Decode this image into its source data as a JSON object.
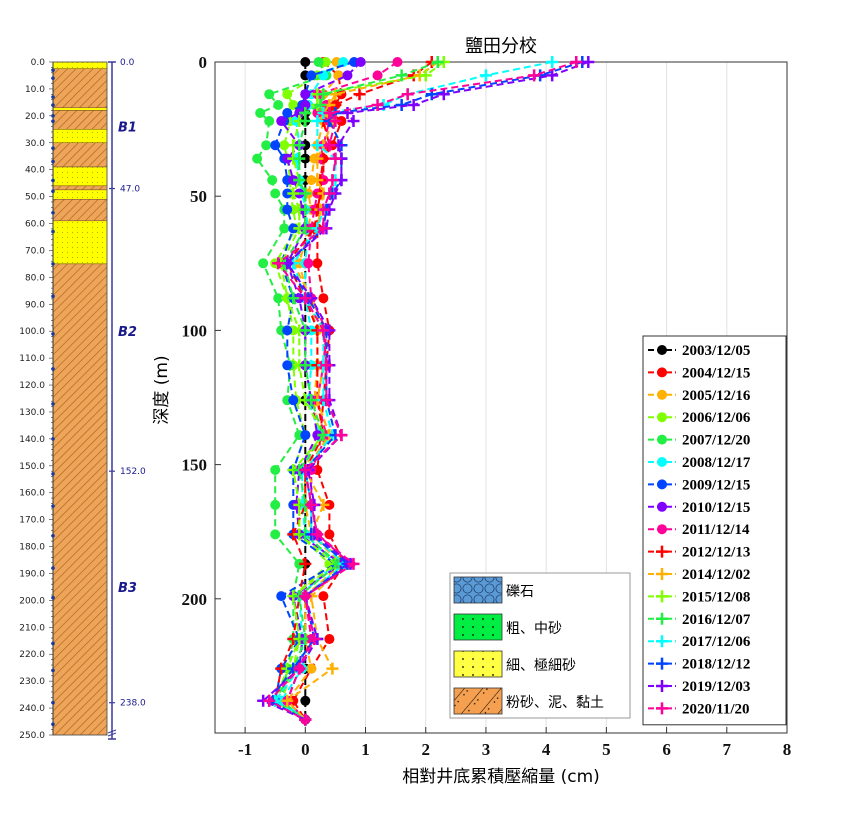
{
  "chart_data": {
    "type": "line",
    "title": "鹽田分校",
    "xlabel": "相對井底累積壓縮量 (cm)",
    "ylabel": "深度 (m)",
    "xlim": [
      -1.5,
      8
    ],
    "ylim": [
      0,
      250
    ],
    "y_inverted": true,
    "grid": "vertical",
    "legend_placement": "bottom-right",
    "xticks": [
      "-1",
      "0",
      "1",
      "2",
      "3",
      "4",
      "5",
      "6",
      "7",
      "8"
    ],
    "xtick_values": [
      -1,
      0,
      1,
      2,
      3,
      4,
      5,
      6,
      7,
      8
    ],
    "yticks": [
      "0",
      "50",
      "100",
      "150",
      "200"
    ],
    "ytick_values": [
      0,
      50,
      100,
      150,
      200
    ],
    "depths": [
      0,
      5,
      12,
      16,
      19,
      22,
      31,
      36,
      44,
      49,
      55,
      62,
      75,
      88,
      100,
      113,
      126,
      139,
      152,
      165,
      176,
      187,
      199,
      215,
      226,
      238,
      245
    ],
    "series": [
      {
        "name": "2003/12/05",
        "color": "#000000",
        "marker": "circle",
        "values": [
          0,
          0,
          0,
          0,
          0,
          0,
          0,
          0,
          0,
          0,
          0,
          0,
          0,
          0,
          0,
          0,
          0,
          0,
          0,
          0,
          0,
          0,
          0,
          0,
          0,
          0,
          0
        ]
      },
      {
        "name": "2004/12/15",
        "color": "#ff0000",
        "marker": "circle",
        "values": [
          0.3,
          0.55,
          0.6,
          0.5,
          0.45,
          0.6,
          0.45,
          0.3,
          0.3,
          0.25,
          0.2,
          0.2,
          0.2,
          0.3,
          0.4,
          0.35,
          0.3,
          0.25,
          0.2,
          0.4,
          0.4,
          0.65,
          0.3,
          0.4,
          0.1,
          -0.2,
          0
        ]
      },
      {
        "name": "2005/12/16",
        "color": "#ffb000",
        "marker": "circle",
        "values": [
          0.52,
          0.55,
          0.3,
          0.35,
          0.3,
          0.3,
          0.2,
          0.15,
          0.1,
          0.05,
          0.1,
          0.05,
          -0.1,
          0.05,
          0.2,
          0.2,
          0.15,
          0.2,
          0,
          0,
          0.1,
          0.6,
          0,
          0,
          0.1,
          -0.3,
          0
        ]
      },
      {
        "name": "2006/12/06",
        "color": "#80ff00",
        "marker": "circle",
        "values": [
          0.34,
          0.2,
          -0.3,
          -0.2,
          -0.3,
          -0.25,
          -0.35,
          -0.3,
          -0.25,
          -0.25,
          -0.2,
          -0.15,
          -0.5,
          -0.3,
          -0.2,
          -0.2,
          -0.15,
          0,
          -0.2,
          -0.1,
          -0.1,
          0.4,
          -0.2,
          -0.1,
          -0.2,
          -0.4,
          0
        ]
      },
      {
        "name": "2007/12/20",
        "color": "#22ee44",
        "marker": "circle",
        "values": [
          0.22,
          0.35,
          -0.6,
          -0.45,
          -0.75,
          -0.6,
          -0.65,
          -0.8,
          -0.55,
          -0.5,
          -0.35,
          -0.35,
          -0.7,
          -0.45,
          -0.4,
          -0.25,
          -0.3,
          -0.1,
          -0.5,
          -0.5,
          -0.5,
          -0.1,
          -0.2,
          -0.2,
          -0.3,
          -0.4,
          0
        ]
      },
      {
        "name": "2008/12/17",
        "color": "#00ffff",
        "marker": "circle",
        "values": [
          0.63,
          0.3,
          0.1,
          0.05,
          -0.1,
          -0.15,
          -0.1,
          -0.15,
          -0.1,
          -0.05,
          0,
          0.05,
          0,
          0,
          0.1,
          0.1,
          0.05,
          0.25,
          -0.05,
          -0.05,
          0,
          0.5,
          -0.1,
          -0.05,
          -0.05,
          -0.4,
          0
        ]
      },
      {
        "name": "2009/12/15",
        "color": "#0044ff",
        "marker": "circle",
        "values": [
          0.81,
          0.1,
          0,
          -0.05,
          -0.3,
          -0.35,
          -0.5,
          -0.35,
          -0.3,
          -0.3,
          -0.3,
          -0.2,
          -0.4,
          -0.2,
          -0.3,
          -0.3,
          -0.2,
          0,
          -0.2,
          -0.2,
          -0.2,
          0.5,
          -0.4,
          -0.1,
          -0.4,
          -0.5,
          0
        ]
      },
      {
        "name": "2010/12/15",
        "color": "#8000ff",
        "marker": "circle",
        "values": [
          0.92,
          0.7,
          0,
          0,
          -0.1,
          -0.4,
          -0.1,
          -0.3,
          -0.2,
          -0.1,
          -0.05,
          0,
          -0.3,
          -0.1,
          0,
          0,
          0.1,
          0.2,
          -0.1,
          -0.15,
          -0.1,
          0.6,
          -0.2,
          -0.05,
          -0.1,
          -0.3,
          0
        ]
      },
      {
        "name": "2011/12/14",
        "color": "#ff0099",
        "marker": "circle",
        "values": [
          1.53,
          1.2,
          0.2,
          0.35,
          0.2,
          0.4,
          0.3,
          0.25,
          0.3,
          0.2,
          0.15,
          0.1,
          0.05,
          0.1,
          0.35,
          0.3,
          0.2,
          0.35,
          0.1,
          0.1,
          0.2,
          0.75,
          0,
          0.1,
          -0.1,
          -0.3,
          0
        ]
      },
      {
        "name": "2012/12/13",
        "color": "#ff0000",
        "marker": "plus",
        "values": [
          2.1,
          1.8,
          0.9,
          0.5,
          0.3,
          0.3,
          0.4,
          0.3,
          0.25,
          0.25,
          0.2,
          0.15,
          -0.3,
          0,
          0.2,
          0.2,
          0.2,
          0.3,
          0,
          0,
          -0.2,
          0,
          -0.1,
          -0.2,
          -0.4,
          -0.5,
          0
        ]
      },
      {
        "name": "2014/12/02",
        "color": "#ffb000",
        "marker": "plus",
        "values": [
          2.2,
          1.9,
          0.5,
          0.4,
          0.3,
          0.45,
          0.3,
          0.2,
          0.2,
          0.3,
          0.25,
          0.2,
          -0.2,
          0.1,
          0.3,
          0.3,
          0.2,
          0.4,
          0,
          0.3,
          0.1,
          0.7,
          0.1,
          0.2,
          0.45,
          -0.3,
          0
        ]
      },
      {
        "name": "2015/12/08",
        "color": "#80ff00",
        "marker": "plus",
        "values": [
          2.3,
          2.0,
          0.2,
          0.2,
          0,
          -0.1,
          -0.2,
          -0.2,
          -0.1,
          -0.2,
          -0.1,
          -0.1,
          -0.4,
          -0.3,
          -0.1,
          -0.1,
          0,
          0.3,
          -0.2,
          -0.1,
          -0.1,
          0.5,
          -0.2,
          -0.1,
          -0.3,
          -0.5,
          0
        ]
      },
      {
        "name": "2016/12/07",
        "color": "#22ee44",
        "marker": "plus",
        "values": [
          2.2,
          1.6,
          0.3,
          0.25,
          0,
          0,
          -0.1,
          -0.1,
          -0.1,
          0,
          0,
          0,
          -0.35,
          -0.2,
          0,
          0,
          0.1,
          0.3,
          -0.1,
          0,
          0,
          0.55,
          -0.1,
          0,
          -0.2,
          -0.5,
          0
        ]
      },
      {
        "name": "2017/12/06",
        "color": "#00ffff",
        "marker": "plus",
        "values": [
          4.1,
          3.0,
          1.7,
          1.3,
          0.3,
          0.2,
          0.2,
          0.5,
          0.5,
          0.4,
          0.3,
          0.2,
          -0.2,
          0,
          0.3,
          0.3,
          0.3,
          0.45,
          0,
          0.1,
          0.1,
          0.65,
          0,
          0.2,
          -0.1,
          -0.5,
          0
        ]
      },
      {
        "name": "2018/12/12",
        "color": "#0044ff",
        "marker": "plus",
        "values": [
          4.6,
          3.9,
          2.1,
          1.6,
          0.5,
          0.4,
          0.6,
          0.6,
          0.6,
          0.45,
          0.35,
          0.3,
          -0.3,
          0.05,
          0.35,
          0.35,
          0.35,
          0.5,
          0,
          0.1,
          0.1,
          0.7,
          0,
          0.15,
          -0.2,
          -0.6,
          0
        ]
      },
      {
        "name": "2019/12/03",
        "color": "#8000ff",
        "marker": "plus",
        "values": [
          4.7,
          4.1,
          2.3,
          1.8,
          0.7,
          0.8,
          0.55,
          0.6,
          0.6,
          0.5,
          0.4,
          0.35,
          -0.3,
          0.1,
          0.4,
          0.4,
          0.4,
          0.6,
          0.05,
          0.15,
          0.15,
          0.75,
          0,
          0.2,
          -0.1,
          -0.7,
          0
        ]
      },
      {
        "name": "2020/11/20",
        "color": "#ff0099",
        "marker": "plus",
        "values": [
          4.5,
          3.8,
          1.7,
          1.2,
          0.4,
          0.5,
          0.4,
          0.5,
          0.45,
          0.4,
          0.3,
          0.3,
          -0.45,
          0,
          0.3,
          0.35,
          0.35,
          0.6,
          0,
          0.1,
          0.2,
          0.8,
          0,
          0.15,
          -0.1,
          -0.6,
          0
        ]
      }
    ],
    "lithology_legend": [
      {
        "label": "礫石",
        "type": "gravel",
        "color": "#5b9bd5"
      },
      {
        "label": "粗、中砂",
        "type": "coarse-sand",
        "color": "#00ee44"
      },
      {
        "label": "細、極細砂",
        "type": "fine-sand",
        "color": "#ffff44"
      },
      {
        "label": "粉砂、泥、黏土",
        "type": "silt-clay",
        "color": "#f4a050"
      }
    ]
  },
  "column": {
    "depth_ticks": [
      "0.0",
      "10.0",
      "20.0",
      "30.0",
      "40.0",
      "50.0",
      "60.0",
      "70.0",
      "80.0",
      "90.0",
      "100.0",
      "110.0",
      "120.0",
      "130.0",
      "140.0",
      "150.0",
      "160.0",
      "170.0",
      "180.0",
      "190.0",
      "200.0",
      "210.0",
      "220.0",
      "230.0",
      "240.0",
      "250.0"
    ],
    "layers": [
      {
        "top": 0,
        "bottom": 2.5,
        "type": "fine-sand"
      },
      {
        "top": 2.5,
        "bottom": 17,
        "type": "silt-clay"
      },
      {
        "top": 17,
        "bottom": 18,
        "type": "fine-sand"
      },
      {
        "top": 18,
        "bottom": 25,
        "type": "silt-clay"
      },
      {
        "top": 25,
        "bottom": 30,
        "type": "fine-sand"
      },
      {
        "top": 30,
        "bottom": 39,
        "type": "silt-clay"
      },
      {
        "top": 39,
        "bottom": 46,
        "type": "fine-sand"
      },
      {
        "top": 46,
        "bottom": 47.5,
        "type": "silt-clay"
      },
      {
        "top": 47.5,
        "bottom": 51,
        "type": "fine-sand"
      },
      {
        "top": 51,
        "bottom": 59,
        "type": "silt-clay"
      },
      {
        "top": 59,
        "bottom": 75,
        "type": "fine-sand"
      },
      {
        "top": 75,
        "bottom": 250,
        "type": "silt-clay"
      }
    ],
    "sensor_depths": [
      3,
      6,
      13,
      16,
      20,
      22,
      32,
      37,
      44,
      48,
      56,
      63,
      75,
      87,
      101,
      114,
      127,
      140,
      153,
      165,
      176,
      188,
      199,
      216,
      226,
      238,
      246
    ],
    "units": [
      {
        "name": "B1",
        "top": 0,
        "bottom": 47
      },
      {
        "name": "B2",
        "top": 47,
        "bottom": 152
      },
      {
        "name": "B3",
        "top": 152,
        "bottom": 238
      }
    ],
    "boundary_labels": [
      "0.0",
      "47.0",
      "152.0",
      "238.0"
    ],
    "boundary_values": [
      0,
      47,
      152,
      238
    ]
  }
}
